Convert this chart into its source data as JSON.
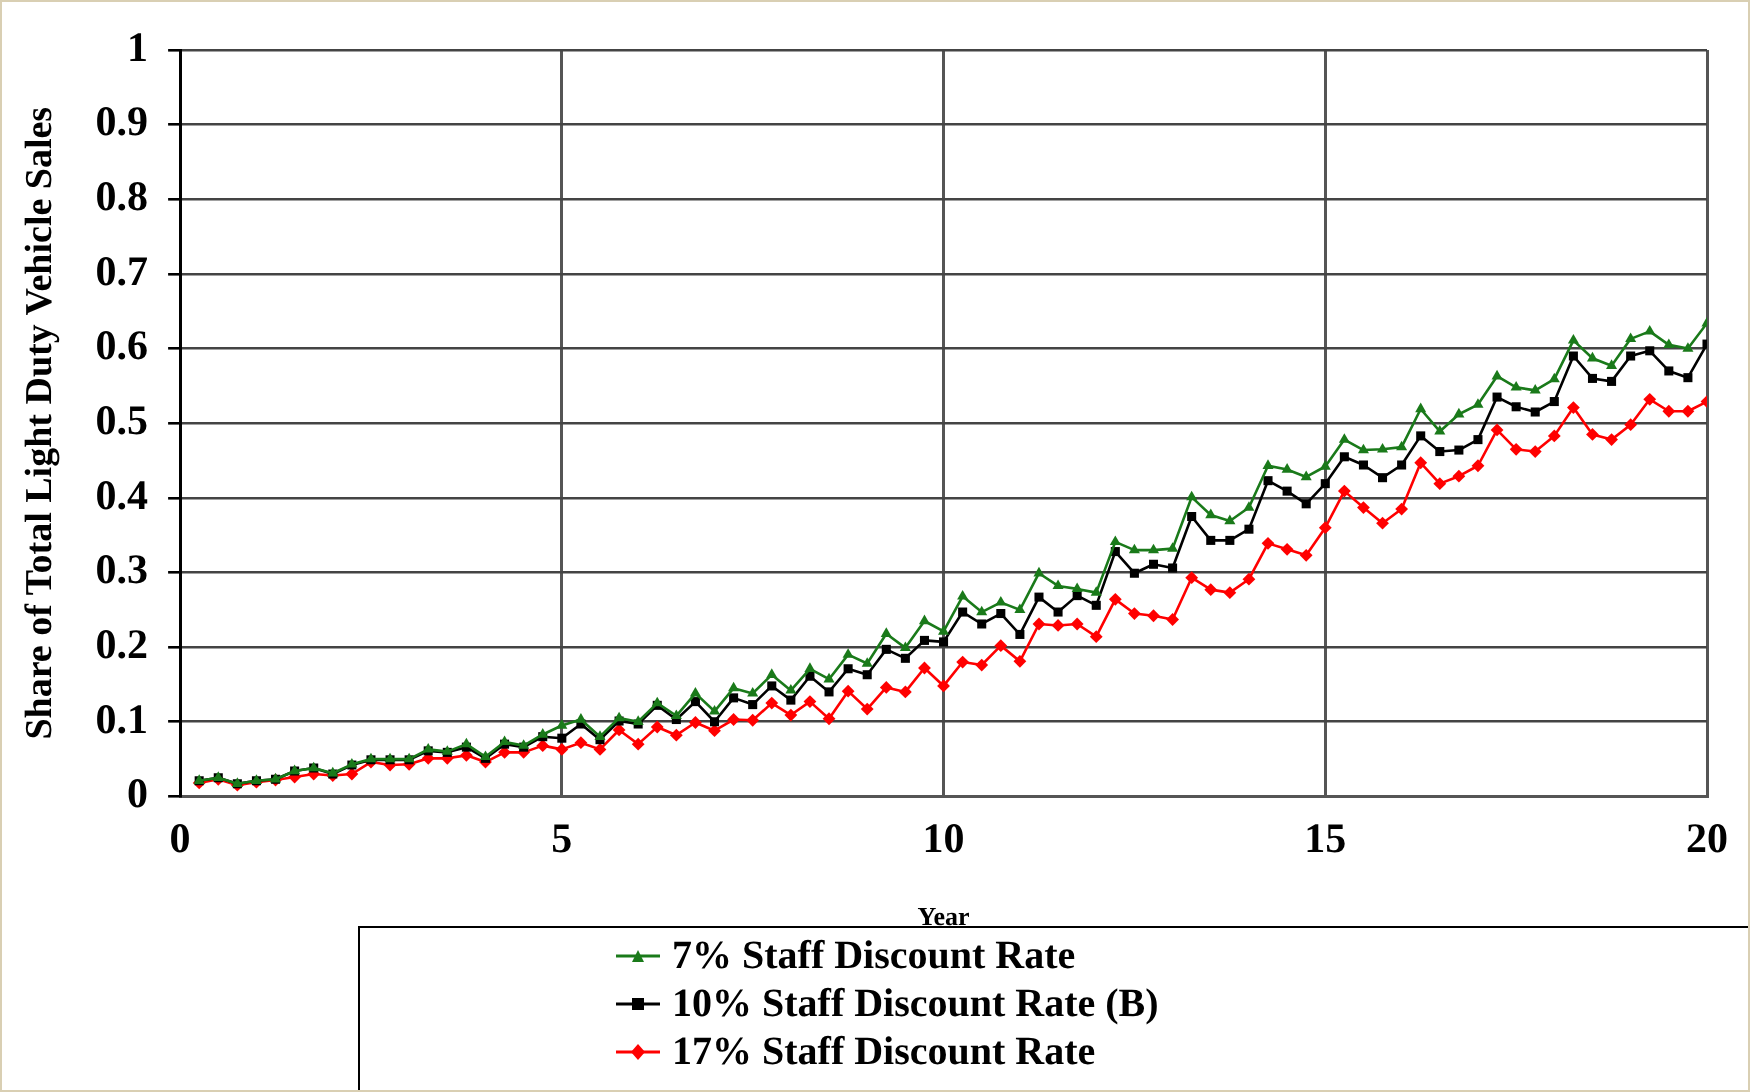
{
  "chart_data": {
    "type": "line",
    "xlabel": "Year",
    "ylabel": "Share of Total Light Duty Vehicle Sales",
    "x": [
      0.25,
      0.5,
      0.75,
      1,
      1.25,
      1.5,
      1.75,
      2,
      2.25,
      2.5,
      2.75,
      3,
      3.25,
      3.5,
      3.75,
      4,
      4.25,
      4.5,
      4.75,
      5,
      5.25,
      5.5,
      5.75,
      6,
      6.25,
      6.5,
      6.75,
      7,
      7.25,
      7.5,
      7.75,
      8,
      8.25,
      8.5,
      8.75,
      9,
      9.25,
      9.5,
      9.75,
      10,
      10.25,
      10.5,
      10.75,
      11,
      11.25,
      11.5,
      11.75,
      12,
      12.25,
      12.5,
      12.75,
      13,
      13.25,
      13.5,
      13.75,
      14,
      14.25,
      14.5,
      14.75,
      15,
      15.25,
      15.5,
      15.75,
      16,
      16.25,
      16.5,
      16.75,
      17,
      17.25,
      17.5,
      17.75,
      18,
      18.25,
      18.5,
      18.75,
      19,
      19.25,
      19.5,
      19.75,
      20
    ],
    "series": [
      {
        "name": "7% Staff Discount Rate",
        "color": "#1a7a1a",
        "marker": "triangle",
        "values": [
          0.021,
          0.025,
          0.017,
          0.021,
          0.023,
          0.034,
          0.038,
          0.031,
          0.043,
          0.05,
          0.05,
          0.05,
          0.063,
          0.06,
          0.07,
          0.053,
          0.073,
          0.068,
          0.083,
          0.095,
          0.103,
          0.08,
          0.105,
          0.1,
          0.125,
          0.108,
          0.138,
          0.114,
          0.145,
          0.138,
          0.163,
          0.142,
          0.171,
          0.157,
          0.19,
          0.178,
          0.218,
          0.199,
          0.235,
          0.221,
          0.268,
          0.247,
          0.26,
          0.25,
          0.299,
          0.282,
          0.278,
          0.273,
          0.341,
          0.33,
          0.33,
          0.332,
          0.401,
          0.377,
          0.369,
          0.387,
          0.443,
          0.438,
          0.428,
          0.442,
          0.478,
          0.464,
          0.465,
          0.468,
          0.519,
          0.489,
          0.512,
          0.525,
          0.563,
          0.548,
          0.544,
          0.559,
          0.611,
          0.587,
          0.577,
          0.613,
          0.623,
          0.605,
          0.6,
          0.634
        ]
      },
      {
        "name": "10% Staff Discount Rate (B)",
        "color": "#000000",
        "marker": "square",
        "values": [
          0.021,
          0.025,
          0.017,
          0.021,
          0.023,
          0.034,
          0.038,
          0.03,
          0.042,
          0.049,
          0.049,
          0.049,
          0.061,
          0.059,
          0.066,
          0.051,
          0.07,
          0.066,
          0.08,
          0.078,
          0.097,
          0.076,
          0.101,
          0.097,
          0.122,
          0.103,
          0.127,
          0.1,
          0.132,
          0.123,
          0.148,
          0.129,
          0.161,
          0.14,
          0.171,
          0.163,
          0.197,
          0.185,
          0.209,
          0.207,
          0.247,
          0.231,
          0.245,
          0.217,
          0.267,
          0.247,
          0.269,
          0.256,
          0.328,
          0.299,
          0.311,
          0.306,
          0.375,
          0.343,
          0.343,
          0.358,
          0.423,
          0.409,
          0.392,
          0.419,
          0.455,
          0.444,
          0.427,
          0.444,
          0.483,
          0.462,
          0.464,
          0.478,
          0.535,
          0.522,
          0.515,
          0.529,
          0.59,
          0.56,
          0.556,
          0.59,
          0.597,
          0.57,
          0.561,
          0.606
        ]
      },
      {
        "name": "17% Staff Discount Rate",
        "color": "#ff0000",
        "marker": "diamond",
        "values": [
          0.018,
          0.023,
          0.015,
          0.019,
          0.022,
          0.026,
          0.03,
          0.028,
          0.03,
          0.046,
          0.042,
          0.043,
          0.051,
          0.051,
          0.055,
          0.046,
          0.059,
          0.059,
          0.068,
          0.063,
          0.072,
          0.063,
          0.089,
          0.07,
          0.093,
          0.082,
          0.099,
          0.088,
          0.103,
          0.102,
          0.125,
          0.109,
          0.127,
          0.104,
          0.141,
          0.117,
          0.146,
          0.14,
          0.172,
          0.148,
          0.18,
          0.176,
          0.202,
          0.181,
          0.231,
          0.229,
          0.231,
          0.214,
          0.264,
          0.245,
          0.242,
          0.237,
          0.293,
          0.277,
          0.273,
          0.291,
          0.339,
          0.331,
          0.323,
          0.36,
          0.409,
          0.387,
          0.366,
          0.385,
          0.447,
          0.419,
          0.429,
          0.443,
          0.491,
          0.465,
          0.462,
          0.483,
          0.521,
          0.485,
          0.478,
          0.498,
          0.532,
          0.516,
          0.516,
          0.529
        ]
      }
    ],
    "xlim": [
      0,
      20
    ],
    "xticks": [
      0,
      5,
      10,
      15,
      20
    ],
    "ylim": [
      0,
      1
    ],
    "yticks": [
      0,
      0.1,
      0.2,
      0.3,
      0.4,
      0.5,
      0.6,
      0.7,
      0.8,
      0.9,
      1
    ],
    "grid": true,
    "legend": "bottom",
    "line_style": "solid"
  }
}
